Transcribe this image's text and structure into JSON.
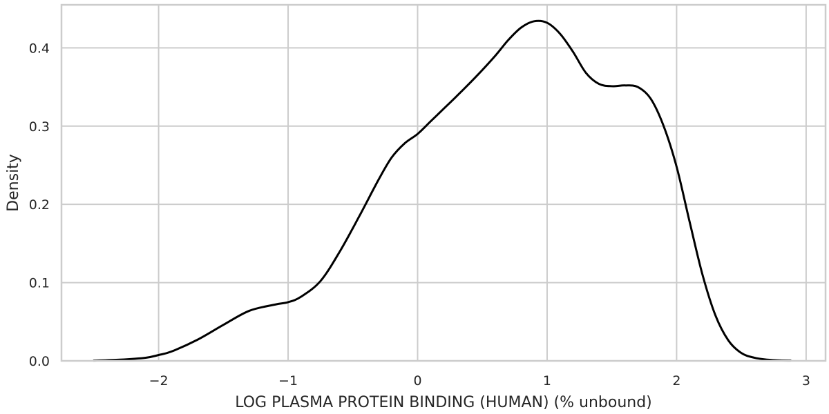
{
  "chart_data": {
    "type": "line",
    "title": "",
    "xlabel": "LOG PLASMA PROTEIN BINDING (HUMAN) (% unbound)",
    "ylabel": "Density",
    "xlim": [
      -2.75,
      3.15
    ],
    "ylim": [
      0,
      0.455
    ],
    "grid": true,
    "legend": "none",
    "x_ticks": [
      -2,
      -1,
      0,
      1,
      2,
      3
    ],
    "x_tick_labels": [
      "−2",
      "−1",
      "0",
      "1",
      "2",
      "3"
    ],
    "y_ticks": [
      0.0,
      0.1,
      0.2,
      0.3,
      0.4
    ],
    "y_tick_labels": [
      "0.0",
      "0.1",
      "0.2",
      "0.3",
      "0.4"
    ],
    "series": [
      {
        "line_color": "#000000",
        "x": [
          -2.5,
          -2.3,
          -2.1,
          -2.0,
          -1.9,
          -1.7,
          -1.5,
          -1.3,
          -1.1,
          -1.0,
          -0.9,
          -0.75,
          -0.6,
          -0.45,
          -0.3,
          -0.2,
          -0.1,
          0.0,
          0.1,
          0.2,
          0.3,
          0.45,
          0.6,
          0.7,
          0.8,
          0.9,
          1.0,
          1.1,
          1.2,
          1.3,
          1.4,
          1.5,
          1.6,
          1.7,
          1.8,
          1.9,
          2.0,
          2.1,
          2.2,
          2.3,
          2.4,
          2.5,
          2.6,
          2.7,
          2.8,
          2.88
        ],
        "y": [
          0.0003,
          0.0015,
          0.004,
          0.0075,
          0.012,
          0.027,
          0.046,
          0.064,
          0.072,
          0.075,
          0.082,
          0.102,
          0.14,
          0.185,
          0.232,
          0.26,
          0.278,
          0.29,
          0.306,
          0.322,
          0.338,
          0.363,
          0.39,
          0.41,
          0.426,
          0.434,
          0.432,
          0.418,
          0.395,
          0.368,
          0.354,
          0.351,
          0.352,
          0.35,
          0.335,
          0.3,
          0.248,
          0.178,
          0.11,
          0.058,
          0.026,
          0.01,
          0.004,
          0.0015,
          0.0005,
          0.0003
        ]
      }
    ]
  }
}
